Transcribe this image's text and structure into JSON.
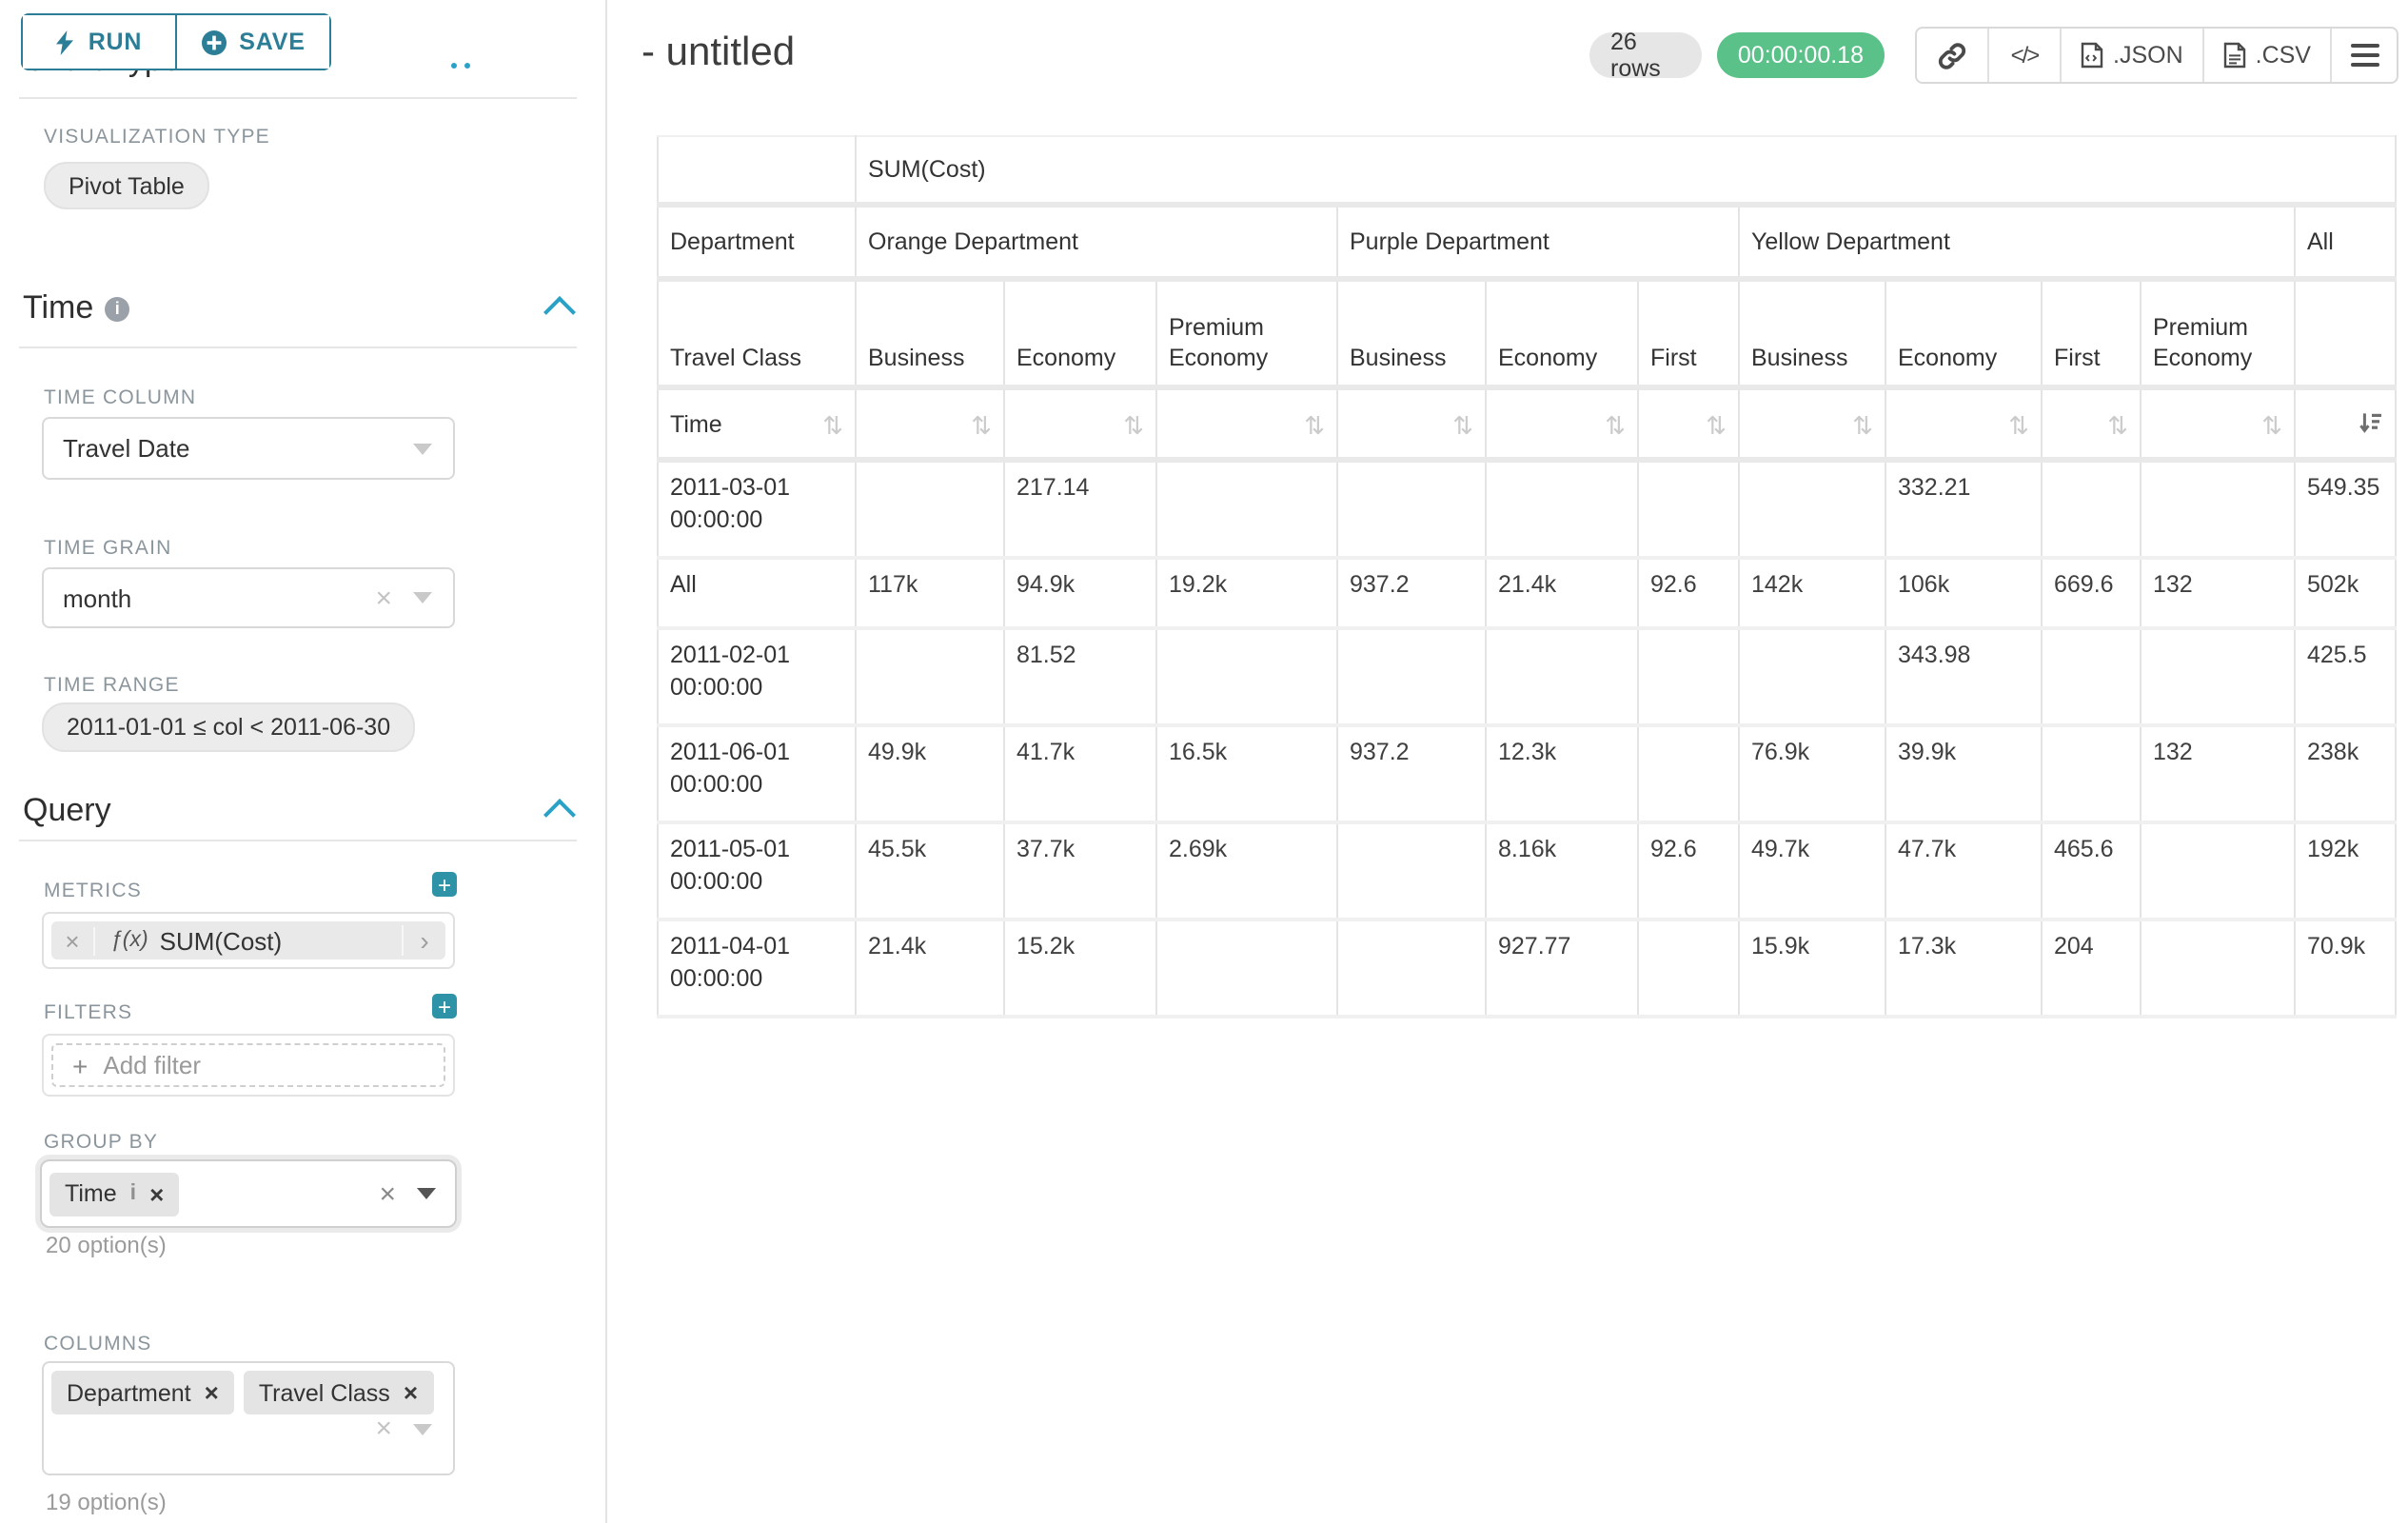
{
  "toolbar": {
    "run": "RUN",
    "save": "SAVE"
  },
  "panel": {
    "chart_type_heading": "Chart Type",
    "visualization_type_label": "VISUALIZATION TYPE",
    "visualization_type_value": "Pivot Table",
    "time": {
      "heading": "Time",
      "time_column_label": "TIME COLUMN",
      "time_column_value": "Travel Date",
      "time_grain_label": "TIME GRAIN",
      "time_grain_value": "month",
      "time_range_label": "TIME RANGE",
      "time_range_value": "2011-01-01 ≤ col < 2011-06-30"
    },
    "query": {
      "heading": "Query",
      "metrics_label": "METRICS",
      "metric_function_prefix": "ƒ(x)",
      "metric_value": "SUM(Cost)",
      "filters_label": "FILTERS",
      "add_filter_placeholder": "Add filter",
      "group_by_label": "GROUP BY",
      "group_by_chips": [
        {
          "label": "Time"
        }
      ],
      "group_by_count": "20 option(s)",
      "columns_label": "COLUMNS",
      "columns_chips": [
        {
          "label": "Department"
        },
        {
          "label": "Travel Class"
        }
      ],
      "columns_count": "19 option(s)"
    }
  },
  "header": {
    "title": "- untitled",
    "rows_badge": "26 rows",
    "timer": "00:00:00.18",
    "json_label": ".JSON",
    "csv_label": ".CSV"
  },
  "colors": {
    "accent_teal": "#2b7e96",
    "chevron_blue": "#2aa2c8",
    "success_green": "#5ac189"
  },
  "pivot_table": {
    "metric_header": "SUM(Cost)",
    "department_label": "Department",
    "travel_class_label": "Travel Class",
    "time_label": "Time",
    "column_groups": [
      {
        "name": "Orange Department",
        "classes": [
          "Business",
          "Economy",
          "Premium Economy"
        ]
      },
      {
        "name": "Purple Department",
        "classes": [
          "Business",
          "Economy",
          "First"
        ]
      },
      {
        "name": "Yellow Department",
        "classes": [
          "Business",
          "Economy",
          "First",
          "Premium Economy"
        ]
      },
      {
        "name": "All",
        "classes": [
          ""
        ]
      }
    ],
    "rows": [
      {
        "time": "2011-03-01 00:00:00",
        "values": [
          "",
          "217.14",
          "",
          "",
          "",
          "",
          "",
          "332.21",
          "",
          "",
          "549.35"
        ]
      },
      {
        "time": "All",
        "values": [
          "117k",
          "94.9k",
          "19.2k",
          "937.2",
          "21.4k",
          "92.6",
          "142k",
          "106k",
          "669.6",
          "132",
          "502k"
        ]
      },
      {
        "time": "2011-02-01 00:00:00",
        "values": [
          "",
          "81.52",
          "",
          "",
          "",
          "",
          "",
          "343.98",
          "",
          "",
          "425.5"
        ]
      },
      {
        "time": "2011-06-01 00:00:00",
        "values": [
          "49.9k",
          "41.7k",
          "16.5k",
          "937.2",
          "12.3k",
          "",
          "76.9k",
          "39.9k",
          "",
          "132",
          "238k"
        ]
      },
      {
        "time": "2011-05-01 00:00:00",
        "values": [
          "45.5k",
          "37.7k",
          "2.69k",
          "",
          "8.16k",
          "92.6",
          "49.7k",
          "47.7k",
          "465.6",
          "",
          "192k"
        ]
      },
      {
        "time": "2011-04-01 00:00:00",
        "values": [
          "21.4k",
          "15.2k",
          "",
          "",
          "927.77",
          "",
          "15.9k",
          "17.3k",
          "204",
          "",
          "70.9k"
        ]
      }
    ]
  }
}
